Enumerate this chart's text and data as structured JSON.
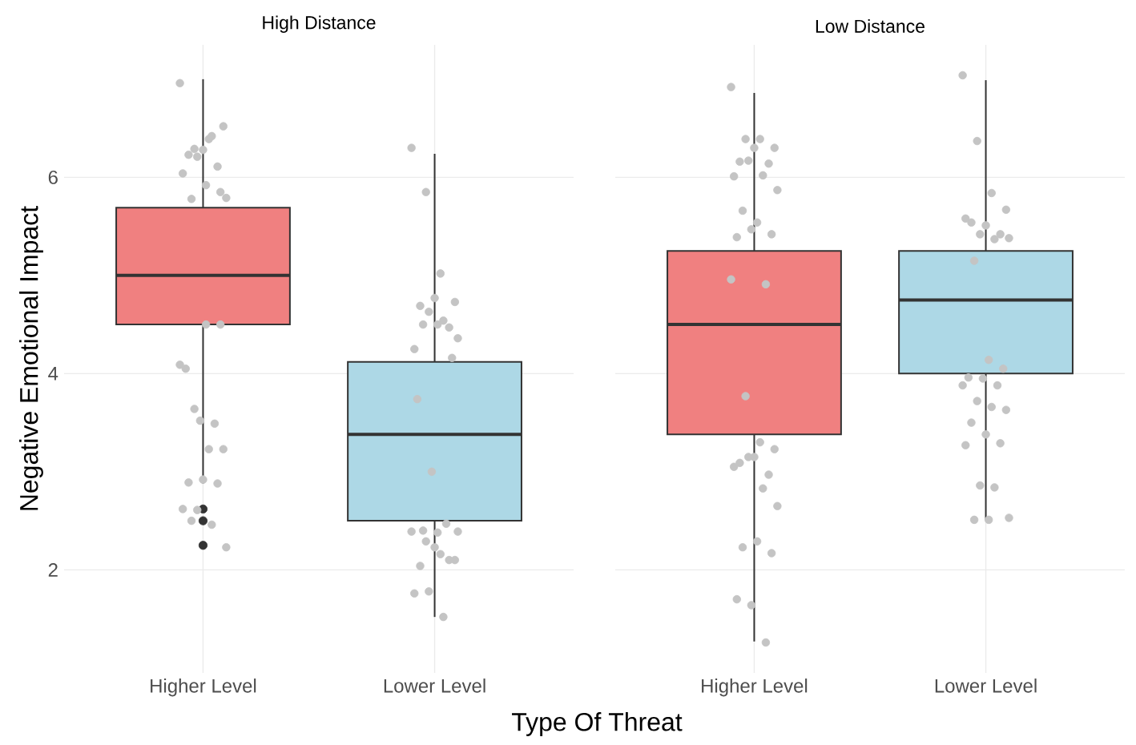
{
  "chart_data": [
    {
      "type": "box",
      "title": "High Distance",
      "xlabel": "Type Of Threat",
      "ylabel": "Negative Emotional Impact",
      "categories": [
        "Higher Level",
        "Lower Level"
      ],
      "ylim": [
        0.95,
        7.35
      ],
      "yticks": [
        2,
        4,
        6
      ],
      "grid": true,
      "series": [
        {
          "colors": [
            "#f08080",
            "#add8e6"
          ],
          "boxes": [
            {
              "low": 2.88,
              "q1": 4.5,
              "median": 5.0,
              "q3": 5.69,
              "high": 7.0,
              "outliers": [
                2.62,
                2.5,
                2.25
              ]
            },
            {
              "low": 1.52,
              "q1": 2.5,
              "median": 3.38,
              "q3": 4.12,
              "high": 6.24
            }
          ]
        },
        {
          "type": "scatter",
          "color": "#c4c4c4",
          "x": [
            "Higher Level",
            "Higher Level",
            "Higher Level",
            "Higher Level",
            "Higher Level",
            "Higher Level",
            "Higher Level",
            "Higher Level",
            "Higher Level",
            "Higher Level",
            "Higher Level",
            "Higher Level",
            "Higher Level",
            "Higher Level",
            "Higher Level",
            "Higher Level",
            "Higher Level",
            "Higher Level",
            "Higher Level",
            "Higher Level",
            "Higher Level",
            "Higher Level",
            "Higher Level",
            "Higher Level",
            "Higher Level",
            "Higher Level",
            "Higher Level",
            "Higher Level",
            "Higher Level",
            "Higher Level",
            "Higher Level"
          ],
          "values": [
            6.96,
            6.29,
            6.39,
            6.52,
            6.23,
            6.28,
            6.11,
            6.04,
            6.21,
            6.42,
            5.79,
            5.78,
            5.92,
            5.85,
            4.05,
            3.52,
            3.49,
            4.09,
            3.64,
            3.23,
            3.23,
            2.89,
            2.92,
            2.88,
            2.62,
            2.61,
            2.46,
            2.23,
            2.5,
            4.5,
            4.5
          ]
        },
        {
          "type": "scatter",
          "color": "#c4c4c4",
          "x": [
            "Lower Level",
            "Lower Level",
            "Lower Level",
            "Lower Level",
            "Lower Level",
            "Lower Level",
            "Lower Level",
            "Lower Level",
            "Lower Level",
            "Lower Level",
            "Lower Level",
            "Lower Level",
            "Lower Level",
            "Lower Level",
            "Lower Level",
            "Lower Level",
            "Lower Level",
            "Lower Level",
            "Lower Level",
            "Lower Level",
            "Lower Level",
            "Lower Level",
            "Lower Level",
            "Lower Level",
            "Lower Level",
            "Lower Level",
            "Lower Level",
            "Lower Level",
            "Lower Level",
            "Lower Level"
          ],
          "values": [
            6.3,
            5.85,
            5.02,
            4.73,
            4.69,
            4.77,
            4.47,
            4.25,
            4.63,
            4.54,
            4.36,
            4.5,
            4.5,
            4.16,
            3.74,
            3.0,
            2.47,
            2.39,
            2.29,
            2.16,
            2.1,
            2.04,
            2.23,
            2.1,
            1.76,
            1.78,
            1.52,
            2.39,
            2.4,
            2.38
          ]
        }
      ]
    },
    {
      "type": "box",
      "title": "Low Distance",
      "categories": [
        "Higher Level",
        "Lower Level"
      ],
      "ylim": [
        0.95,
        7.35
      ],
      "yticks": [
        2,
        4,
        6
      ],
      "grid": true,
      "tick_labels": "x",
      "series": [
        {
          "colors": [
            "#f08080",
            "#add8e6"
          ],
          "boxes": [
            {
              "low": 1.27,
              "q1": 3.38,
              "median": 4.5,
              "q3": 5.25,
              "high": 6.86
            },
            {
              "low": 2.51,
              "q1": 4.0,
              "median": 4.75,
              "q3": 5.25,
              "high": 6.99
            }
          ]
        },
        {
          "type": "scatter",
          "color": "#c4c4c4",
          "x": [
            "Higher Level",
            "Higher Level",
            "Higher Level",
            "Higher Level",
            "Higher Level",
            "Higher Level",
            "Higher Level",
            "Higher Level",
            "Higher Level",
            "Higher Level",
            "Higher Level",
            "Higher Level",
            "Higher Level",
            "Higher Level",
            "Higher Level",
            "Higher Level",
            "Higher Level",
            "Higher Level",
            "Higher Level",
            "Higher Level",
            "Higher Level",
            "Higher Level",
            "Higher Level",
            "Higher Level",
            "Higher Level",
            "Higher Level",
            "Higher Level",
            "Higher Level",
            "Higher Level",
            "Higher Level",
            "Higher Level",
            "Higher Level",
            "Higher Level",
            "Higher Level"
          ],
          "values": [
            6.92,
            6.39,
            6.39,
            6.3,
            6.16,
            6.3,
            6.14,
            6.01,
            6.17,
            6.02,
            5.87,
            5.66,
            5.54,
            5.42,
            5.39,
            5.47,
            4.91,
            4.96,
            3.77,
            3.3,
            3.23,
            3.09,
            3.15,
            2.97,
            3.05,
            3.15,
            2.83,
            2.65,
            2.23,
            2.29,
            2.17,
            1.7,
            1.64,
            1.26
          ]
        },
        {
          "type": "scatter",
          "color": "#c4c4c4",
          "x": [
            "Lower Level",
            "Lower Level",
            "Lower Level",
            "Lower Level",
            "Lower Level",
            "Lower Level",
            "Lower Level",
            "Lower Level",
            "Lower Level",
            "Lower Level",
            "Lower Level",
            "Lower Level",
            "Lower Level",
            "Lower Level",
            "Lower Level",
            "Lower Level",
            "Lower Level",
            "Lower Level",
            "Lower Level",
            "Lower Level",
            "Lower Level",
            "Lower Level",
            "Lower Level",
            "Lower Level",
            "Lower Level",
            "Lower Level",
            "Lower Level",
            "Lower Level",
            "Lower Level",
            "Lower Level"
          ],
          "values": [
            7.04,
            6.37,
            5.84,
            5.67,
            5.54,
            5.51,
            5.42,
            5.58,
            5.42,
            5.37,
            5.38,
            5.15,
            4.14,
            4.05,
            3.96,
            3.95,
            3.88,
            3.88,
            3.72,
            3.66,
            3.63,
            3.5,
            3.38,
            3.29,
            3.27,
            2.86,
            2.84,
            2.53,
            2.51,
            2.51
          ]
        }
      ]
    }
  ]
}
